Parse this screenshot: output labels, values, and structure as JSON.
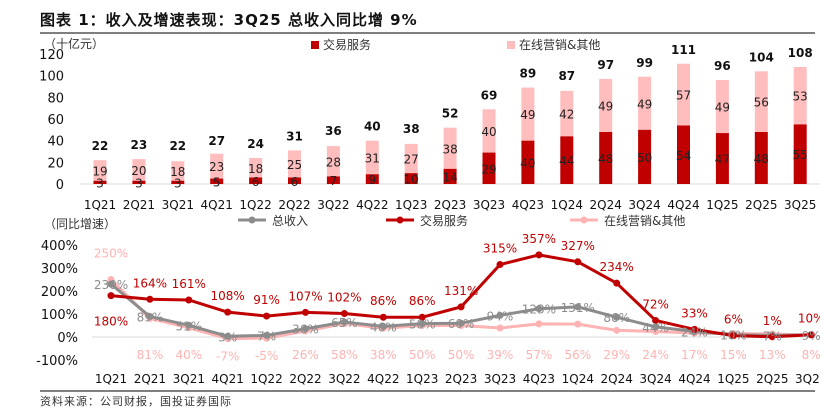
{
  "title": "图表 1：收入及增速表现：3Q25 总收入同比增 9%",
  "source": "资料来源：公司财报，国投证券国际",
  "chart_data": [
    {
      "type": "bar",
      "stacked": true,
      "unit_label": "（十亿元）",
      "categories": [
        "1Q21",
        "2Q21",
        "3Q21",
        "4Q21",
        "1Q22",
        "2Q22",
        "3Q22",
        "4Q22",
        "1Q23",
        "2Q23",
        "3Q23",
        "4Q23",
        "1Q24",
        "2Q24",
        "3Q24",
        "4Q24",
        "1Q25",
        "2Q25",
        "3Q25"
      ],
      "series": [
        {
          "name": "交易服务",
          "color": "#c00000",
          "values": [
            3,
            3,
            3,
            5,
            6,
            6,
            7,
            9,
            10,
            14,
            29,
            40,
            44,
            48,
            50,
            54,
            47,
            48,
            55
          ]
        },
        {
          "name": "在线营销&其他",
          "color": "#ffbdbd",
          "values": [
            19,
            20,
            18,
            23,
            18,
            25,
            28,
            31,
            27,
            38,
            40,
            49,
            42,
            49,
            49,
            57,
            49,
            56,
            53
          ]
        }
      ],
      "totals": [
        22,
        23,
        22,
        27,
        24,
        31,
        36,
        40,
        38,
        52,
        69,
        89,
        87,
        97,
        99,
        111,
        96,
        104,
        108
      ],
      "ylim": [
        0,
        120
      ],
      "yticks": [
        0,
        20,
        40,
        60,
        80,
        100,
        120
      ],
      "legend": "top"
    },
    {
      "type": "line",
      "unit_label": "（同比增速）",
      "categories": [
        "1Q21",
        "2Q21",
        "3Q21",
        "4Q21",
        "1Q22",
        "2Q22",
        "3Q22",
        "4Q22",
        "1Q23",
        "2Q23",
        "3Q23",
        "4Q23",
        "1Q24",
        "2Q24",
        "3Q24",
        "4Q24",
        "1Q25",
        "2Q25",
        "3Q25"
      ],
      "series": [
        {
          "name": "总收入",
          "color": "#8c8c8c",
          "values": [
            230,
            89,
            51,
            3,
            7,
            36,
            65,
            46,
            58,
            60,
            94,
            123,
            131,
            86,
            44,
            24,
            10,
            7,
            9
          ]
        },
        {
          "name": "交易服务",
          "color": "#c00000",
          "values": [
            180,
            164,
            161,
            108,
            91,
            107,
            102,
            86,
            86,
            131,
            315,
            357,
            327,
            234,
            72,
            33,
            6,
            1,
            10
          ]
        },
        {
          "name": "在线营销&其他",
          "color": "#ffb3b3",
          "values": [
            250,
            81,
            40,
            -7,
            -5,
            26,
            58,
            38,
            50,
            50,
            39,
            57,
            56,
            29,
            24,
            17,
            15,
            13,
            8
          ]
        }
      ],
      "ylim": [
        -100,
        400
      ],
      "yticks": [
        "-100%",
        "0%",
        "100%",
        "200%",
        "300%",
        "400%"
      ],
      "legend": "top"
    }
  ]
}
